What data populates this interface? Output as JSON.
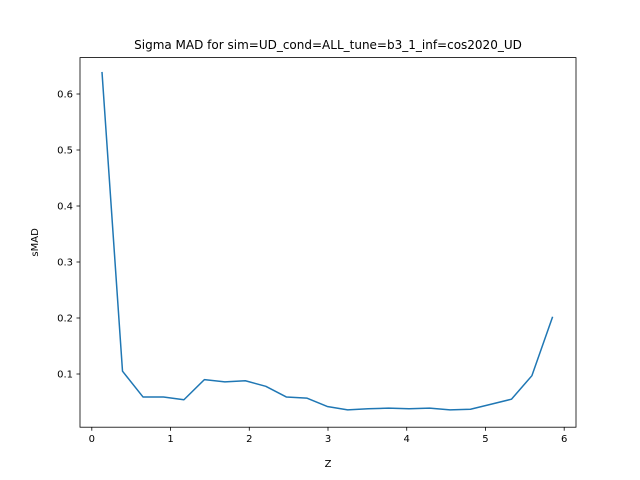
{
  "chart_data": {
    "type": "line",
    "title": "Sigma MAD for sim=UD_cond=ALL_tune=b3_1_inf=cos2020_UD",
    "xlabel": "Z",
    "ylabel": "sMAD",
    "xlim": [
      -0.15,
      6.15
    ],
    "ylim": [
      0.005,
      0.665
    ],
    "xticks": [
      0,
      1,
      2,
      3,
      4,
      5,
      6
    ],
    "yticks": [
      0.1,
      0.2,
      0.3,
      0.4,
      0.5,
      0.6
    ],
    "grid": false,
    "series": [
      {
        "color": "#1f77b4",
        "x": [
          0.13,
          0.39,
          0.65,
          0.91,
          1.17,
          1.43,
          1.69,
          1.95,
          2.21,
          2.47,
          2.73,
          2.99,
          3.25,
          3.51,
          3.77,
          4.03,
          4.29,
          4.55,
          4.81,
          5.07,
          5.33,
          5.59,
          5.85
        ],
        "y": [
          0.638,
          0.105,
          0.059,
          0.059,
          0.054,
          0.09,
          0.086,
          0.088,
          0.078,
          0.059,
          0.057,
          0.042,
          0.036,
          0.038,
          0.039,
          0.038,
          0.039,
          0.036,
          0.037,
          0.046,
          0.055,
          0.097,
          0.201
        ]
      }
    ]
  }
}
